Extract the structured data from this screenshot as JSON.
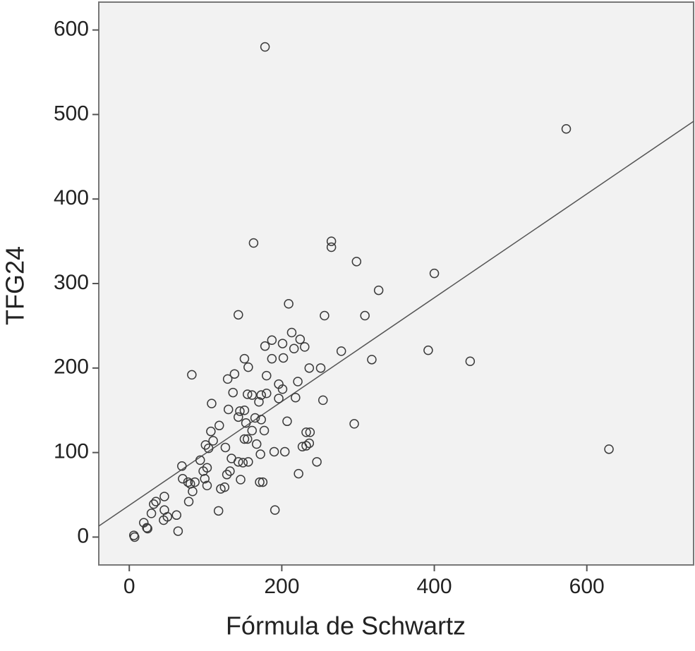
{
  "chart_data": {
    "type": "scatter",
    "xlabel": "Fórmula de Schwartz",
    "ylabel": "TFG24",
    "xlim": [
      -40,
      740
    ],
    "ylim": [
      -33,
      633
    ],
    "xticks": [
      0,
      200,
      400,
      600
    ],
    "yticks": [
      0,
      100,
      200,
      300,
      400,
      500,
      600
    ],
    "marker_color": "#3a3a3a",
    "line_color": "#555555",
    "background": "#f2f2f2",
    "x": [
      178,
      573,
      629,
      163,
      265,
      265,
      298,
      400,
      327,
      143,
      209,
      256,
      309,
      392,
      447,
      318,
      278,
      254,
      295,
      82,
      108,
      178,
      187,
      201,
      213,
      224,
      230,
      216,
      202,
      187,
      180,
      151,
      156,
      138,
      129,
      236,
      251,
      221,
      196,
      201,
      180,
      173,
      155,
      161,
      136,
      130,
      145,
      151,
      170,
      196,
      218,
      207,
      232,
      237,
      232,
      236,
      227,
      204,
      190,
      246,
      222,
      191,
      117,
      175,
      171,
      146,
      125,
      120,
      128,
      132,
      143,
      149,
      156,
      172,
      167,
      155,
      151,
      177,
      161,
      153,
      143,
      165,
      173,
      118,
      107,
      110,
      100,
      104,
      126,
      134,
      93,
      102,
      97,
      99,
      102,
      69,
      70,
      77,
      80,
      86,
      83,
      78,
      46,
      35,
      32,
      46,
      29,
      50,
      62,
      45,
      64,
      19,
      23,
      6,
      7,
      24
    ],
    "values": [
      580,
      483,
      104,
      348,
      350,
      343,
      326,
      312,
      292,
      263,
      276,
      262,
      262,
      221,
      208,
      210,
      220,
      162,
      134,
      192,
      158,
      226,
      233,
      229,
      242,
      234,
      225,
      223,
      212,
      211,
      191,
      211,
      201,
      193,
      187,
      200,
      200,
      184,
      181,
      175,
      170,
      168,
      169,
      168,
      171,
      151,
      149,
      150,
      160,
      164,
      165,
      137,
      124,
      124,
      108,
      111,
      107,
      101,
      101,
      89,
      75,
      32,
      31,
      65,
      65,
      68,
      59,
      57,
      74,
      78,
      89,
      88,
      89,
      98,
      110,
      116,
      116,
      126,
      126,
      135,
      142,
      141,
      139,
      132,
      125,
      114,
      109,
      105,
      106,
      93,
      91,
      82,
      78,
      69,
      61,
      84,
      69,
      65,
      63,
      65,
      54,
      42,
      48,
      42,
      39,
      32,
      28,
      24,
      26,
      20,
      7,
      17,
      11,
      2,
      0,
      10
    ],
    "fit_line": {
      "x": [
        -40,
        740
      ],
      "values": [
        13,
        492
      ]
    }
  }
}
